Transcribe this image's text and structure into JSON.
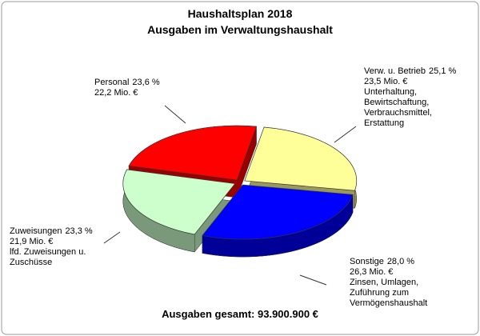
{
  "chart_data": {
    "type": "pie3d",
    "title": "Haushaltsplan 2018",
    "subtitle": "Ausgaben im Verwaltungshaushalt",
    "categories": [
      "Verw. u. Betrieb",
      "Sonstige",
      "Zuweisungen",
      "Personal"
    ],
    "values": [
      25.1,
      28.0,
      23.3,
      23.6
    ],
    "value_labels": [
      "25,1 %",
      "28,0 %",
      "23,3 %",
      "23,6 %"
    ],
    "amounts": [
      23.5,
      26.3,
      21.9,
      22.2
    ],
    "amount_labels": [
      "23,5 Mio. €",
      "26,3 Mio. €",
      "21,9 Mio. €",
      "22,2 Mio. €"
    ],
    "descriptions": [
      [
        "Unterhaltung,",
        "Bewirtschaftung,",
        "Verbrauchsmittel,",
        "Erstattung"
      ],
      [
        "Zinsen, Umlagen,",
        "Zuführung zum",
        "Vermögenshaushalt"
      ],
      [
        "lfd. Zuweisungen u.",
        "Zuschüsse"
      ],
      []
    ],
    "colors": [
      "#ffff99",
      "#0000ff",
      "#ccffcc",
      "#ff0000"
    ],
    "total_label": "Ausgaben gesamt: 93.900.900 €"
  }
}
